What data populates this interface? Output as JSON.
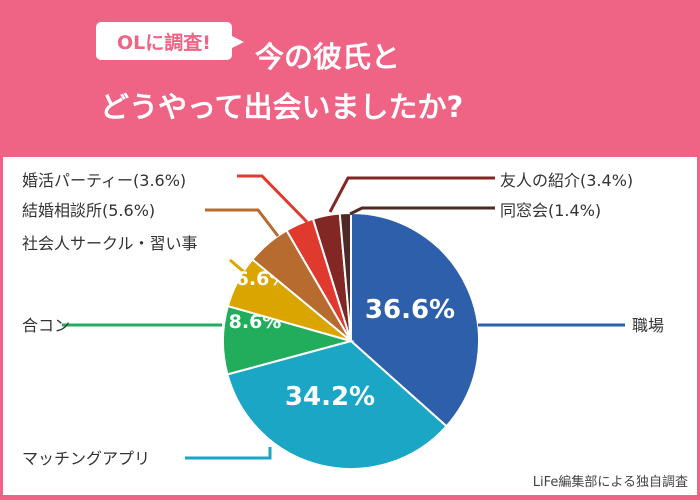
{
  "header": {
    "badge": "OLに調査!",
    "title_line1": "今の彼氏と",
    "title_line2": "どうやって出会いましたか?"
  },
  "credit": "LiFe編集部による独自調査",
  "chart_data": {
    "type": "pie",
    "start": "top",
    "direction": "clockwise",
    "slices": [
      {
        "label": "職場",
        "value": 36.6,
        "color": "#2e5faa",
        "inside_label": "36.6%"
      },
      {
        "label": "マッチングアプリ",
        "value": 34.2,
        "color": "#1ba6c6",
        "inside_label": "34.2%"
      },
      {
        "label": "合コン",
        "value": 8.6,
        "color": "#22ad5c",
        "inside_label": "8.6%"
      },
      {
        "label": "社会人サークル・習い事",
        "value": 6.6,
        "color": "#dba500",
        "inside_label": "6.6%"
      },
      {
        "label": "結婚相談所(5.6%)",
        "value": 5.6,
        "color": "#b76b2e"
      },
      {
        "label": "婚活パーティー(3.6%)",
        "value": 3.6,
        "color": "#e03a2e"
      },
      {
        "label": "友人の紹介(3.4%)",
        "value": 3.4,
        "color": "#832724"
      },
      {
        "label": "同窓会(1.4%)",
        "value": 1.4,
        "color": "#4d2a26"
      }
    ]
  }
}
